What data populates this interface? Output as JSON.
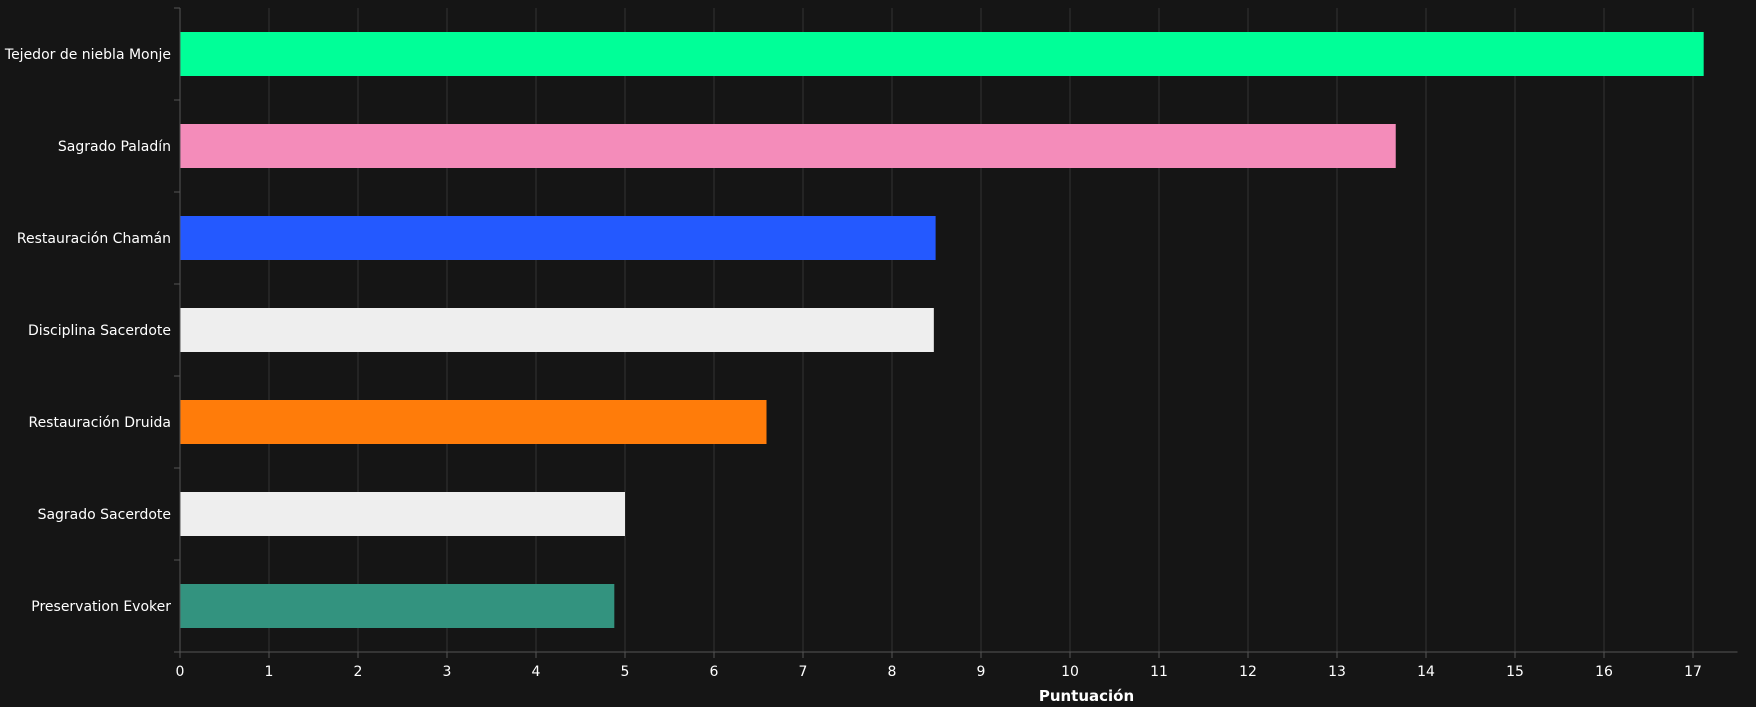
{
  "chart_data": {
    "type": "bar",
    "orientation": "horizontal",
    "title": "",
    "xlabel": "Puntuación",
    "ylabel": "",
    "xlim": [
      0,
      17.5
    ],
    "xticks": [
      0,
      1,
      2,
      3,
      4,
      5,
      6,
      7,
      8,
      9,
      10,
      11,
      12,
      13,
      14,
      15,
      16,
      17
    ],
    "grid": true,
    "background": "#151515",
    "categories": [
      "Tejedor de niebla Monje",
      "Sagrado Paladín",
      "Restauración Chamán",
      "Disciplina Sacerdote",
      "Restauración Druida",
      "Sagrado Sacerdote",
      "Preservation Evoker"
    ],
    "values": [
      17.12,
      13.66,
      8.49,
      8.47,
      6.59,
      5.0,
      4.88
    ],
    "colors": [
      "#00ff98",
      "#f48cba",
      "#2459ff",
      "#eeeeee",
      "#ff7c0a",
      "#eeeeee",
      "#33937f"
    ]
  }
}
